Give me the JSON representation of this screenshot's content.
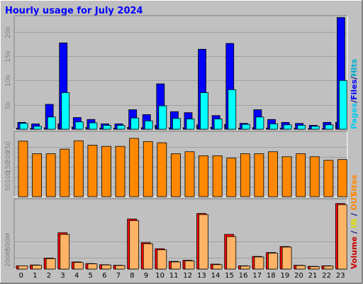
{
  "chart_data": [
    {
      "type": "bar",
      "panel": "pages-files-hits",
      "title": "Hourly usage for July 2024",
      "categories": [
        "0",
        "1",
        "2",
        "3",
        "4",
        "5",
        "6",
        "7",
        "8",
        "9",
        "10",
        "11",
        "12",
        "13",
        "14",
        "15",
        "16",
        "17",
        "18",
        "19",
        "20",
        "21",
        "22",
        "23"
      ],
      "series": [
        {
          "name": "Pages",
          "color": "#00008b",
          "values": [
            200,
            150,
            300,
            1100,
            450,
            350,
            200,
            200,
            400,
            300,
            800,
            300,
            300,
            900,
            400,
            1000,
            200,
            300,
            250,
            200,
            150,
            100,
            100,
            1400
          ]
        },
        {
          "name": "Files",
          "color": "#0000ff",
          "values": [
            1400,
            1100,
            5100,
            17700,
            2400,
            2000,
            1100,
            1100,
            4000,
            3000,
            9300,
            3600,
            3400,
            16400,
            2800,
            17600,
            1200,
            4000,
            2000,
            1400,
            1200,
            800,
            1400,
            22900
          ]
        },
        {
          "name": "Hits",
          "color": "#00ffff",
          "values": [
            1200,
            600,
            2500,
            7500,
            1500,
            1300,
            800,
            800,
            2300,
            1700,
            4800,
            2200,
            2100,
            7500,
            2100,
            8100,
            1000,
            2500,
            1100,
            900,
            800,
            600,
            900,
            10000
          ]
        }
      ],
      "ylabels": [
        "5k",
        "10k",
        "15k",
        "20k"
      ],
      "ylim": [
        0,
        23000
      ],
      "legend_parts": [
        {
          "text": "Pages",
          "color": "#00ccee"
        },
        {
          "text": "/",
          "color": "#00008b"
        },
        {
          "text": "Files",
          "color": "#0000ff"
        },
        {
          "text": "/",
          "color": "#00008b"
        },
        {
          "text": "Hits",
          "color": "#00aacc"
        }
      ]
    },
    {
      "type": "bar",
      "panel": "sites",
      "categories": [
        "0",
        "1",
        "2",
        "3",
        "4",
        "5",
        "6",
        "7",
        "8",
        "9",
        "10",
        "11",
        "12",
        "13",
        "14",
        "15",
        "16",
        "17",
        "18",
        "19",
        "20",
        "21",
        "22",
        "23"
      ],
      "series": [
        {
          "name": "Sites",
          "color": "#ff8800",
          "values": [
            278,
            215,
            215,
            238,
            280,
            258,
            252,
            252,
            292,
            276,
            270,
            215,
            225,
            205,
            205,
            193,
            215,
            215,
            225,
            200,
            215,
            200,
            182,
            186
          ]
        }
      ],
      "ylabels": [
        "50",
        "100",
        "150",
        "200",
        "250"
      ],
      "ylim": [
        0,
        320
      ],
      "legend_parts": [
        {
          "text": "Sites",
          "color": "#ff8800"
        }
      ]
    },
    {
      "type": "bar",
      "panel": "volume",
      "categories": [
        "0",
        "1",
        "2",
        "3",
        "4",
        "5",
        "6",
        "7",
        "8",
        "9",
        "10",
        "11",
        "12",
        "13",
        "14",
        "15",
        "16",
        "17",
        "18",
        "19",
        "20",
        "21",
        "22",
        "23"
      ],
      "series": [
        {
          "name": "Volume",
          "color": "#ff0000",
          "values": [
            60,
            75,
            200,
            660,
            130,
            100,
            80,
            70,
            910,
            480,
            370,
            140,
            160,
            1010,
            90,
            630,
            60,
            230,
            300,
            410,
            70,
            50,
            60,
            1190
          ]
        },
        {
          "name": "IN",
          "color": "#ffff00",
          "values": [
            0,
            0,
            0,
            0,
            0,
            0,
            0,
            0,
            0,
            0,
            0,
            0,
            0,
            0,
            0,
            0,
            0,
            0,
            0,
            0,
            0,
            0,
            0,
            0
          ]
        },
        {
          "name": "OUT",
          "color": "#ffb366",
          "values": [
            60,
            70,
            190,
            630,
            120,
            95,
            75,
            65,
            880,
            460,
            350,
            130,
            150,
            990,
            80,
            590,
            55,
            220,
            290,
            400,
            65,
            45,
            55,
            1170
          ]
        }
      ],
      "ylabels": [
        "200M",
        "500M"
      ],
      "ylim": [
        0,
        1250
      ],
      "legend_parts": [
        {
          "text": "Volume",
          "color": "#cc0000"
        },
        {
          "text": " / ",
          "color": "#00008b"
        },
        {
          "text": "IN",
          "color": "#dddd00"
        },
        {
          "text": " / ",
          "color": "#00008b"
        },
        {
          "text": "OUT",
          "color": "#ff8800"
        }
      ]
    }
  ]
}
